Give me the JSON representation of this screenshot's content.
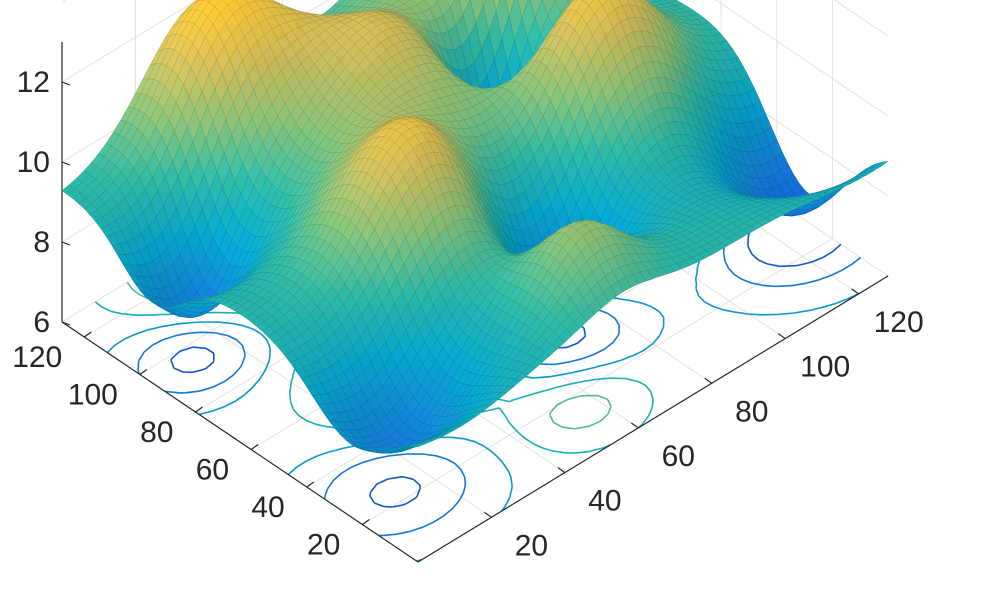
{
  "chart_data": {
    "type": "surface",
    "title": "",
    "xlabel": "",
    "ylabel": "",
    "zlabel": "",
    "colormap": "parula",
    "base_contour": true,
    "grid": true,
    "xlim": [
      1,
      128
    ],
    "ylim": [
      1,
      128
    ],
    "zlim": [
      6,
      13
    ],
    "x_ticks": [
      "20",
      "40",
      "60",
      "80",
      "100",
      "120"
    ],
    "y_ticks": [
      "20",
      "40",
      "60",
      "80",
      "100",
      "120"
    ],
    "z_ticks": [
      "6",
      "8",
      "10",
      "12"
    ],
    "surface": {
      "grid_size": [
        16,
        16
      ],
      "description_of_z": "smooth random field between about 5 and 13",
      "base": 9.2,
      "bumps": [
        {
          "x": 36,
          "y": 120,
          "amp": 3.2,
          "sigma": 14
        },
        {
          "x": 96,
          "y": 122,
          "amp": 2.0,
          "sigma": 12
        },
        {
          "x": 104,
          "y": 104,
          "amp": 3.5,
          "sigma": 10
        },
        {
          "x": 62,
          "y": 94,
          "amp": 2.3,
          "sigma": 16
        },
        {
          "x": 96,
          "y": 62,
          "amp": 3.0,
          "sigma": 14
        },
        {
          "x": 40,
          "y": 56,
          "amp": 2.8,
          "sigma": 14
        },
        {
          "x": 88,
          "y": 86,
          "amp": -3.2,
          "sigma": 9
        },
        {
          "x": 12,
          "y": 96,
          "amp": -2.2,
          "sigma": 11
        },
        {
          "x": 124,
          "y": 28,
          "amp": -2.6,
          "sigma": 14
        },
        {
          "x": 68,
          "y": 40,
          "amp": -2.4,
          "sigma": 12
        },
        {
          "x": 12,
          "y": 24,
          "amp": -2.0,
          "sigma": 14
        },
        {
          "x": 56,
          "y": 16,
          "amp": 1.6,
          "sigma": 10
        }
      ]
    }
  },
  "colors": {
    "parula": [
      "#352a87",
      "#0f5cdd",
      "#1481d6",
      "#06a4ca",
      "#2eb7a4",
      "#87bf77",
      "#d1bb59",
      "#fec832",
      "#f9fb0e"
    ],
    "axis": "#262626",
    "grid": "#e3e3e3",
    "background": "#ffffff"
  }
}
